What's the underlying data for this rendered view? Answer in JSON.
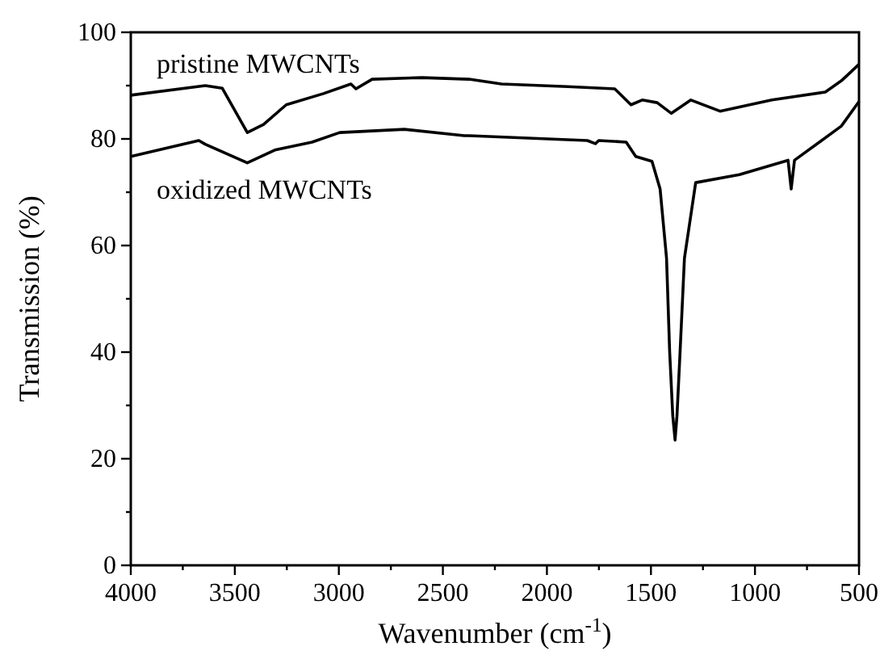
{
  "chart_data": {
    "type": "line",
    "xlabel": "Wavenumber (cm$^{-1}$)",
    "ylabel": "Transmission (%)",
    "xlim": [
      4000,
      500
    ],
    "ylim": [
      0,
      100
    ],
    "xticks": [
      4000,
      {
        "value": 3750,
        "label": null
      },
      3500,
      {
        "value": 3250,
        "label": null
      },
      3000,
      {
        "value": 2750,
        "label": null
      },
      2500,
      {
        "value": 2250,
        "label": null
      },
      2000,
      {
        "value": 1750,
        "label": null
      },
      1500,
      {
        "value": 1250,
        "label": null
      },
      1000,
      {
        "value": 750,
        "label": null
      },
      500
    ],
    "yticks": [
      0,
      {
        "value": 10,
        "label": null
      },
      20,
      {
        "value": 30,
        "label": null
      },
      40,
      {
        "value": 50,
        "label": null
      },
      60,
      {
        "value": 70,
        "label": null
      },
      80,
      {
        "value": 90,
        "label": null
      },
      100
    ],
    "grid": false,
    "legend": false,
    "marker": "none",
    "line_style": "solid",
    "series": [
      {
        "name": "pristine MWCNTs",
        "color": "#000000",
        "x": [
          4000,
          3642,
          3560,
          3440,
          3362,
          3253,
          3074,
          2942,
          2918,
          2840,
          2600,
          2374,
          2218,
          1900,
          1674,
          1596,
          1542,
          1470,
          1402,
          1308,
          1168,
          919,
          662,
          585,
          500
        ],
        "values": [
          88.2,
          90,
          89.5,
          81.2,
          82.7,
          86.4,
          88.5,
          90.3,
          89.4,
          91.2,
          91.5,
          91.2,
          90.3,
          89.8,
          89.4,
          86.4,
          87.3,
          86.8,
          84.8,
          87.3,
          85.2,
          87.3,
          88.8,
          90.9,
          94
        ]
      },
      {
        "name": "oxidized MWCNTs",
        "color": "#000000",
        "x": [
          4000,
          3673,
          3642,
          3440,
          3308,
          3129,
          2996,
          2685,
          2397,
          2374,
          1806,
          1767,
          1751,
          1619,
          1573,
          1495,
          1456,
          1425,
          1410,
          1395,
          1384,
          1375,
          1360,
          1339,
          1285,
          1075,
          841,
          826,
          810,
          585,
          500
        ],
        "values": [
          76.7,
          79.7,
          79,
          75.5,
          77.9,
          79.4,
          81.2,
          81.8,
          80.6,
          80.6,
          79.7,
          79.1,
          79.7,
          79.4,
          76.7,
          75.8,
          70.6,
          57.6,
          40,
          28,
          23.5,
          28,
          40,
          57.6,
          71.8,
          73.3,
          76,
          70.6,
          76,
          82.4,
          87
        ]
      }
    ]
  }
}
